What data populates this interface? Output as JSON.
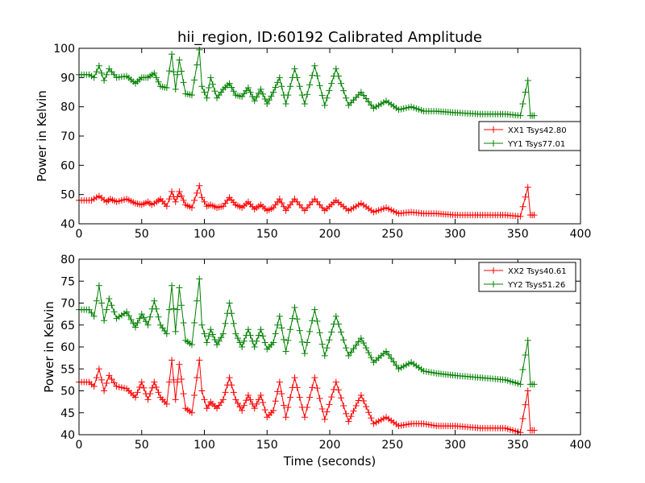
{
  "title": "hii_region, ID:60192 Calibrated Amplitude",
  "colors": {
    "xx": "#ff0000",
    "yy": "#008000"
  },
  "chart_data": [
    {
      "type": "line",
      "xlabel": "",
      "ylabel": "Power in Kelvin",
      "xlim": [
        0,
        400
      ],
      "ylim": [
        40,
        100
      ],
      "xticks": [
        "0",
        "50",
        "100",
        "150",
        "200",
        "250",
        "300",
        "350",
        "400"
      ],
      "yticks": [
        "40",
        "50",
        "60",
        "70",
        "80",
        "90",
        "100"
      ],
      "grid": false,
      "legend_position": "right",
      "series": [
        {
          "name": "XX1 Tsys42.80",
          "color": "#ff0000",
          "x": [
            0,
            10,
            16,
            22,
            25,
            30,
            38,
            45,
            50,
            55,
            58,
            62,
            65,
            70,
            74,
            77,
            80,
            85,
            90,
            96,
            98,
            102,
            105,
            110,
            115,
            120,
            125,
            130,
            135,
            140,
            145,
            150,
            155,
            160,
            165,
            172,
            180,
            188,
            196,
            205,
            215,
            225,
            235,
            245,
            255,
            265,
            275,
            285,
            300,
            320,
            340,
            352,
            358,
            360,
            363
          ],
          "y": [
            48,
            48,
            49.5,
            47.5,
            48.5,
            47.5,
            48.5,
            47,
            46.5,
            47.5,
            46.5,
            47.5,
            48.5,
            46,
            51,
            47.5,
            51,
            46.5,
            45.5,
            53,
            49,
            46,
            46.5,
            45.5,
            46,
            49,
            46.5,
            45.5,
            47.5,
            45,
            46.5,
            44.5,
            45.5,
            48.5,
            44.5,
            48.5,
            44.5,
            48.5,
            44.5,
            48,
            44.5,
            47,
            44,
            45.5,
            43.5,
            44,
            43.5,
            43.5,
            43,
            43,
            43,
            42.5,
            52.5,
            43,
            43
          ]
        },
        {
          "name": "YY1 Tsys77.01",
          "color": "#008000",
          "x": [
            0,
            8,
            12,
            16,
            20,
            24,
            30,
            38,
            45,
            50,
            55,
            60,
            65,
            70,
            74,
            77,
            80,
            85,
            90,
            96,
            98,
            102,
            105,
            110,
            115,
            120,
            125,
            130,
            135,
            140,
            145,
            150,
            155,
            160,
            165,
            172,
            180,
            188,
            196,
            205,
            215,
            225,
            235,
            245,
            255,
            265,
            275,
            285,
            300,
            320,
            340,
            352,
            358,
            360,
            363
          ],
          "y": [
            91,
            91,
            90,
            94,
            89,
            93,
            90,
            90.5,
            88,
            90,
            90,
            91.5,
            87,
            86.5,
            98,
            86,
            96,
            84.5,
            84,
            99.5,
            87,
            83,
            90,
            83,
            86,
            88,
            84,
            83.5,
            86.5,
            82,
            86,
            81,
            85,
            90,
            81,
            93,
            81,
            94,
            80.5,
            93,
            80.5,
            85,
            79.5,
            82,
            79,
            80,
            78.5,
            78.5,
            78,
            77.5,
            77.5,
            77,
            89,
            77,
            77
          ]
        }
      ]
    },
    {
      "type": "line",
      "xlabel": "Time (seconds)",
      "ylabel": "Power in Kelvin",
      "xlim": [
        0,
        400
      ],
      "ylim": [
        40,
        80
      ],
      "xticks": [
        "0",
        "50",
        "100",
        "150",
        "200",
        "250",
        "300",
        "350",
        "400"
      ],
      "yticks": [
        "40",
        "45",
        "50",
        "55",
        "60",
        "65",
        "70",
        "75",
        "80"
      ],
      "grid": false,
      "legend_position": "top-right",
      "series": [
        {
          "name": "XX2 Tsys40.61",
          "color": "#ff0000",
          "x": [
            0,
            8,
            12,
            16,
            20,
            24,
            30,
            38,
            45,
            50,
            55,
            60,
            65,
            70,
            74,
            77,
            80,
            85,
            90,
            96,
            98,
            102,
            105,
            110,
            115,
            120,
            125,
            130,
            135,
            140,
            145,
            150,
            155,
            160,
            165,
            172,
            180,
            188,
            196,
            205,
            215,
            225,
            235,
            245,
            255,
            265,
            275,
            285,
            300,
            320,
            340,
            352,
            358,
            360,
            363
          ],
          "y": [
            52,
            52,
            51,
            55,
            50,
            53.5,
            51,
            50.5,
            48.5,
            52,
            48,
            52,
            48.5,
            47,
            57,
            48,
            56,
            46,
            45,
            57,
            50,
            46,
            47.5,
            46,
            48,
            53,
            48,
            45.5,
            49,
            46,
            49,
            44,
            45.5,
            52,
            44,
            53,
            44,
            53,
            43.5,
            52,
            43,
            49,
            42.5,
            44,
            42,
            42.5,
            42.5,
            42,
            42,
            41.5,
            41.5,
            40.5,
            50,
            41,
            41
          ]
        },
        {
          "name": "YY2 Tsys51.26",
          "color": "#008000",
          "x": [
            0,
            8,
            12,
            16,
            20,
            24,
            30,
            38,
            45,
            50,
            55,
            60,
            65,
            70,
            74,
            77,
            80,
            85,
            90,
            96,
            98,
            102,
            105,
            110,
            115,
            120,
            125,
            130,
            135,
            140,
            145,
            150,
            155,
            160,
            165,
            172,
            180,
            188,
            196,
            205,
            215,
            225,
            235,
            245,
            255,
            265,
            275,
            285,
            300,
            320,
            340,
            352,
            358,
            360,
            363
          ],
          "y": [
            68.5,
            68.5,
            67,
            74,
            66,
            71,
            66.5,
            68,
            64.5,
            67.5,
            65,
            70.5,
            65,
            63,
            74,
            63.5,
            73.5,
            61.5,
            60.5,
            75.5,
            65,
            61,
            64,
            60.5,
            63,
            70,
            63,
            60,
            64,
            60,
            64,
            59.5,
            61,
            67,
            59,
            69,
            58.5,
            68.5,
            58,
            67,
            58,
            62,
            56.5,
            59,
            55,
            56.5,
            54.5,
            54,
            53.5,
            53,
            52.5,
            51.5,
            61.5,
            51.5,
            51.5
          ]
        }
      ]
    }
  ]
}
